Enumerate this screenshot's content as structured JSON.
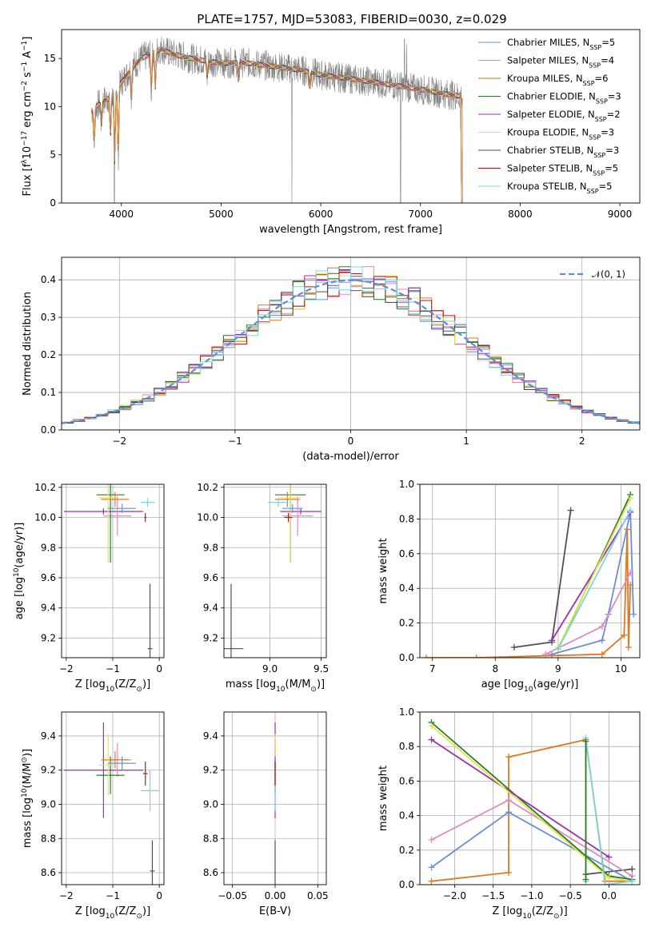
{
  "figure": {
    "title": "PLATE=1757, MJD=53083, FIBERID=0030, z=0.029"
  },
  "palette": {
    "Chabrier MILES": "#6c8ed8",
    "Salpeter MILES": "#e08cc0",
    "Kroupa MILES": "#c47a12",
    "Chabrier ELODIE": "#2a7a2a",
    "Salpeter ELODIE": "#9a2fb0",
    "Kroupa ELODIE": "#e4e44a",
    "Chabrier STELIB": "#505050",
    "Salpeter STELIB": "#b01818",
    "Kroupa STELIB": "#7fd4de",
    "orange": "#e07820",
    "gauss": "#5a8fd8",
    "data": "#808080"
  },
  "chart_data": [
    {
      "id": "spectrum",
      "type": "line",
      "xlabel": "wavelength [Angstrom, rest frame]",
      "ylabel": "Flux [f",
      "ylabel_html": [
        "Flux [f",
        "λ",
        "10",
        "−17",
        " erg cm",
        "−2",
        " s",
        "−1",
        " A",
        "−1",
        "]"
      ],
      "xlim": [
        3400,
        9200
      ],
      "ylim": [
        0,
        18
      ],
      "xticks": [
        4000,
        5000,
        6000,
        7000,
        8000,
        9000
      ],
      "yticks": [
        0,
        5,
        10,
        15
      ],
      "grid": false,
      "legend_position": "top-right",
      "legend": [
        {
          "label": "Chabrier MILES, N",
          "sub": "SSP",
          "tail": "=5",
          "color": "#6c8ed8"
        },
        {
          "label": "Salpeter MILES, N",
          "sub": "SSP",
          "tail": "=4",
          "color": "#e08cc0"
        },
        {
          "label": "Kroupa MILES, N",
          "sub": "SSP",
          "tail": "=6",
          "color": "#c47a12"
        },
        {
          "label": "Chabrier ELODIE, N",
          "sub": "SSP",
          "tail": "=3",
          "color": "#2a7a2a"
        },
        {
          "label": "Salpeter ELODIE, N",
          "sub": "SSP",
          "tail": "=2",
          "color": "#9a2fb0"
        },
        {
          "label": "Kroupa ELODIE, N",
          "sub": "SSP",
          "tail": "=3",
          "color": "#e4e44a"
        },
        {
          "label": "Chabrier STELIB, N",
          "sub": "SSP",
          "tail": "=3",
          "color": "#505050"
        },
        {
          "label": "Salpeter STELIB, N",
          "sub": "SSP",
          "tail": "=5",
          "color": "#b01818"
        },
        {
          "label": "Kroupa STELIB, N",
          "sub": "SSP",
          "tail": "=5",
          "color": "#7fd4de"
        }
      ],
      "continuum": [
        [
          3700,
          9.5
        ],
        [
          3800,
          10.5
        ],
        [
          3900,
          11
        ],
        [
          4000,
          12.5
        ],
        [
          4100,
          14
        ],
        [
          4200,
          15
        ],
        [
          4300,
          15.5
        ],
        [
          4400,
          16
        ],
        [
          4500,
          15.5
        ],
        [
          4700,
          15
        ],
        [
          5000,
          14.5
        ],
        [
          5200,
          14.6
        ],
        [
          5500,
          14.2
        ],
        [
          5800,
          13.8
        ],
        [
          6000,
          13.3
        ],
        [
          6500,
          12.6
        ],
        [
          7000,
          11.8
        ],
        [
          7200,
          11.4
        ],
        [
          7400,
          11.1
        ]
      ],
      "absorption_dips": [
        [
          3727,
          6
        ],
        [
          3800,
          8
        ],
        [
          3890,
          7
        ],
        [
          3933,
          4
        ],
        [
          3968,
          4.5
        ],
        [
          4100,
          11
        ],
        [
          4300,
          11.5
        ],
        [
          4340,
          12
        ],
        [
          4861,
          13
        ],
        [
          5175,
          12.5
        ],
        [
          5890,
          12
        ],
        [
          6563,
          12.5
        ]
      ],
      "spikes": [
        [
          3930,
          0
        ],
        [
          5710,
          0
        ],
        [
          6800,
          0
        ],
        [
          6840,
          17
        ],
        [
          6862,
          16.5
        ],
        [
          7425,
          0
        ]
      ]
    },
    {
      "id": "residuals",
      "type": "histogram",
      "xlabel": "(data-model)/error",
      "ylabel": "Normed distribution",
      "xlim": [
        -2.5,
        2.5
      ],
      "ylim": [
        0,
        0.46
      ],
      "xticks": [
        -2,
        -1,
        0,
        1,
        2
      ],
      "yticks": [
        0.0,
        0.1,
        0.2,
        0.3,
        0.4
      ],
      "grid": true,
      "legend_position": "top-right",
      "legend": [
        {
          "label": "𝒩(0, 1)",
          "color": "#5a8fd8",
          "style": "dashed"
        }
      ],
      "bin_width": 0.1
    },
    {
      "id": "age_vs_Z",
      "type": "errorbar",
      "xlabel": "Z [log",
      "xlabel_html": [
        "Z [log",
        "10",
        "(Z/Z",
        "⊙",
        ")]"
      ],
      "ylabel_html": [
        "age  [log",
        "10",
        "(age/yr)]"
      ],
      "xlim": [
        -2.1,
        0.1
      ],
      "ylim": [
        9.07,
        10.22
      ],
      "xticks": [
        -2,
        -1,
        0
      ],
      "yticks": [
        9.2,
        9.4,
        9.6,
        9.8,
        10.0,
        10.2
      ],
      "grid": true,
      "points": [
        {
          "color": "#9a2fb0",
          "x": -1.2,
          "xerr": 0.85,
          "y": 10.04,
          "yerr": 0.02
        },
        {
          "color": "#e08cc0",
          "x": -0.9,
          "xerr": 0.3,
          "y": 10.01,
          "yerr": 0.13
        },
        {
          "color": "#2a7a2a",
          "x": -1.05,
          "xerr": 0.3,
          "y": 10.15,
          "yerr": 0.45
        },
        {
          "color": "#e07820",
          "x": -0.95,
          "xerr": 0.3,
          "y": 10.12,
          "yerr": 0.05
        },
        {
          "color": "#e4e44a",
          "x": -1.1,
          "xerr": 0.2,
          "y": 10.13,
          "yerr": 0.43
        },
        {
          "color": "#6c8ed8",
          "x": -0.8,
          "xerr": 0.3,
          "y": 10.06,
          "yerr": 0.03
        },
        {
          "color": "#7fd4de",
          "x": -0.25,
          "xerr": 0.15,
          "y": 10.1,
          "yerr": 0.03
        },
        {
          "color": "#505050",
          "x": -0.2,
          "xerr": 0.05,
          "y": 9.13,
          "yerr": 0.43
        },
        {
          "color": "#b01818",
          "x": -0.3,
          "xerr": 0.02,
          "y": 10.0,
          "yerr": 0.03
        }
      ]
    },
    {
      "id": "age_vs_mass",
      "type": "errorbar",
      "xlabel_html": [
        "mass [log",
        "10",
        "(M/M",
        "⊙",
        ")]"
      ],
      "xlim": [
        8.55,
        9.55
      ],
      "ylim": [
        9.07,
        10.22
      ],
      "xticks": [
        9.0,
        9.5
      ],
      "yticks": [
        9.2,
        9.4,
        9.6,
        9.8,
        10.0,
        10.2
      ],
      "grid": true,
      "points": [
        {
          "color": "#9a2fb0",
          "x": 9.3,
          "xerr": 0.2,
          "y": 10.04,
          "yerr": 0.02
        },
        {
          "color": "#e08cc0",
          "x": 9.27,
          "xerr": 0.15,
          "y": 10.01,
          "yerr": 0.13
        },
        {
          "color": "#2a7a2a",
          "x": 9.2,
          "xerr": 0.15,
          "y": 10.15,
          "yerr": 0.45
        },
        {
          "color": "#e07820",
          "x": 9.17,
          "xerr": 0.12,
          "y": 10.12,
          "yerr": 0.05
        },
        {
          "color": "#e4e44a",
          "x": 9.2,
          "xerr": 0.1,
          "y": 10.13,
          "yerr": 0.43
        },
        {
          "color": "#6c8ed8",
          "x": 9.22,
          "xerr": 0.1,
          "y": 10.06,
          "yerr": 0.03
        },
        {
          "color": "#7fd4de",
          "x": 9.08,
          "xerr": 0.1,
          "y": 10.1,
          "yerr": 0.03
        },
        {
          "color": "#505050",
          "x": 8.62,
          "xerr": 0.12,
          "y": 9.13,
          "yerr": 0.43
        },
        {
          "color": "#b01818",
          "x": 9.18,
          "xerr": 0.04,
          "y": 10.0,
          "yerr": 0.03
        }
      ]
    },
    {
      "id": "weight_vs_age",
      "type": "line",
      "xlabel_html": [
        "age  [log",
        "10",
        "(age/yr)]"
      ],
      "ylabel": "mass weight",
      "xlim": [
        6.8,
        10.3
      ],
      "ylim": [
        0,
        1.0
      ],
      "xticks": [
        7,
        8,
        9,
        10
      ],
      "yticks": [
        0.0,
        0.2,
        0.4,
        0.6,
        0.8,
        1.0
      ],
      "grid": true,
      "series": [
        {
          "color": "#505050",
          "x": [
            8.3,
            8.9,
            9.2
          ],
          "y": [
            0.06,
            0.09,
            0.85
          ]
        },
        {
          "color": "#e07820",
          "x": [
            6.9,
            7.7,
            9.7,
            10.05,
            10.1,
            10.12,
            10.15
          ],
          "y": [
            0.0,
            0.0,
            0.02,
            0.13,
            0.74,
            0.06,
            0.42
          ]
        },
        {
          "color": "#6c8ed8",
          "x": [
            8.9,
            9.7,
            9.8,
            10.15,
            10.2
          ],
          "y": [
            0.02,
            0.1,
            0.25,
            0.84,
            0.25
          ]
        },
        {
          "color": "#e08cc0",
          "x": [
            8.8,
            9.7,
            10.15
          ],
          "y": [
            0.02,
            0.18,
            0.49
          ]
        },
        {
          "color": "#2a7a2a",
          "x": [
            9.0,
            10.15
          ],
          "y": [
            0.05,
            0.94
          ]
        },
        {
          "color": "#9a2fb0",
          "x": [
            8.9,
            10.15
          ],
          "y": [
            0.1,
            0.84
          ]
        },
        {
          "color": "#e4e44a",
          "x": [
            9.0,
            10.15
          ],
          "y": [
            0.06,
            0.92
          ]
        },
        {
          "color": "#7fd4de",
          "x": [
            9.0,
            10.15
          ],
          "y": [
            0.05,
            0.85
          ]
        }
      ]
    },
    {
      "id": "mass_vs_Z",
      "type": "errorbar",
      "xlabel_html": [
        "Z [log",
        "10",
        "(Z/Z",
        "⊙",
        ")]"
      ],
      "ylabel_html": [
        "mass [log",
        "10",
        "(M/M",
        "⊙",
        ")]"
      ],
      "xlim": [
        -2.1,
        0.1
      ],
      "ylim": [
        8.53,
        9.54
      ],
      "xticks": [
        -2,
        -1,
        0
      ],
      "yticks": [
        8.6,
        8.8,
        9.0,
        9.2,
        9.4
      ],
      "grid": true,
      "points": [
        {
          "color": "#9a2fb0",
          "x": -1.2,
          "xerr": 0.85,
          "y": 9.2,
          "yerr": 0.28
        },
        {
          "color": "#e08cc0",
          "x": -0.9,
          "xerr": 0.3,
          "y": 9.26,
          "yerr": 0.1
        },
        {
          "color": "#2a7a2a",
          "x": -1.05,
          "xerr": 0.3,
          "y": 9.17,
          "yerr": 0.11
        },
        {
          "color": "#e07820",
          "x": -0.95,
          "xerr": 0.3,
          "y": 9.26,
          "yerr": 0.05
        },
        {
          "color": "#e4e44a",
          "x": -1.1,
          "xerr": 0.2,
          "y": 9.23,
          "yerr": 0.18
        },
        {
          "color": "#6c8ed8",
          "x": -0.8,
          "xerr": 0.3,
          "y": 9.24,
          "yerr": 0.04
        },
        {
          "color": "#7fd4de",
          "x": -0.2,
          "xerr": 0.2,
          "y": 9.08,
          "yerr": 0.12
        },
        {
          "color": "#505050",
          "x": -0.15,
          "xerr": 0.05,
          "y": 8.61,
          "yerr": 0.18
        },
        {
          "color": "#b01818",
          "x": -0.3,
          "xerr": 0.05,
          "y": 9.18,
          "yerr": 0.07
        }
      ]
    },
    {
      "id": "mass_vs_ebv",
      "type": "errorbar",
      "xlabel": "E(B-V)",
      "xlim": [
        -0.06,
        0.06
      ],
      "ylim": [
        8.53,
        9.54
      ],
      "xticks": [
        -0.05,
        0.0,
        0.05
      ],
      "yticks": [
        8.6,
        8.8,
        9.0,
        9.2,
        9.4
      ],
      "grid": true,
      "points": [
        {
          "color": "#9a2fb0",
          "x": 0.0,
          "xerr": 0,
          "y": 9.2,
          "yerr": 0.28
        },
        {
          "color": "#e08cc0",
          "x": 0.0,
          "xerr": 0,
          "y": 9.26,
          "yerr": 0.1
        },
        {
          "color": "#2a7a2a",
          "x": 0.0,
          "xerr": 0,
          "y": 9.17,
          "yerr": 0.11
        },
        {
          "color": "#e07820",
          "x": 0.0,
          "xerr": 0,
          "y": 9.26,
          "yerr": 0.05
        },
        {
          "color": "#e4e44a",
          "x": 0.0,
          "xerr": 0,
          "y": 9.23,
          "yerr": 0.18
        },
        {
          "color": "#6c8ed8",
          "x": 0.0,
          "xerr": 0,
          "y": 9.24,
          "yerr": 0.04
        },
        {
          "color": "#7fd4de",
          "x": 0.0,
          "xerr": 0,
          "y": 9.08,
          "yerr": 0.12
        },
        {
          "color": "#505050",
          "x": 0.0,
          "xerr": 0,
          "y": 8.61,
          "yerr": 0.18
        },
        {
          "color": "#b01818",
          "x": 0.0,
          "xerr": 0,
          "y": 9.18,
          "yerr": 0.07
        }
      ]
    },
    {
      "id": "weight_vs_Z",
      "type": "line",
      "xlabel_html": [
        "Z [log",
        "10",
        "(Z/Z",
        "⊙",
        ")]"
      ],
      "ylabel": "mass weight",
      "xlim": [
        -2.45,
        0.4
      ],
      "ylim": [
        0,
        1.0
      ],
      "xticks": [
        -2.0,
        -1.5,
        -1.0,
        -0.5,
        0.0
      ],
      "xticklabels": [
        "−2.0",
        "−1.5",
        "−1.0",
        "−0.5",
        "0.0"
      ],
      "yticks": [
        0.0,
        0.2,
        0.4,
        0.6,
        0.8,
        1.0
      ],
      "grid": true,
      "series": [
        {
          "color": "#505050",
          "x": [
            -0.3,
            0.3
          ],
          "y": [
            0.06,
            0.09
          ]
        },
        {
          "color": "#e07820",
          "x": [
            -2.3,
            -1.3,
            -1.3,
            -0.3,
            -0.05,
            0.3
          ],
          "y": [
            0.02,
            0.07,
            0.74,
            0.84,
            0.02,
            0.02
          ]
        },
        {
          "color": "#6c8ed8",
          "x": [
            -2.3,
            -1.3,
            0.3
          ],
          "y": [
            0.1,
            0.42,
            0.02
          ]
        },
        {
          "color": "#e08cc0",
          "x": [
            -2.3,
            -1.3,
            0.3
          ],
          "y": [
            0.26,
            0.49,
            0.05
          ]
        },
        {
          "color": "#2a7a2a",
          "x": [
            -2.3,
            0.0,
            0.3
          ],
          "y": [
            0.94,
            0.05,
            0.03
          ]
        },
        {
          "color": "#9a2fb0",
          "x": [
            -2.3,
            0.0
          ],
          "y": [
            0.84,
            0.16
          ]
        },
        {
          "color": "#e4e44a",
          "x": [
            -2.3,
            0.0,
            0.3
          ],
          "y": [
            0.92,
            0.04,
            0.02
          ]
        },
        {
          "color": "#7fd4de",
          "x": [
            -0.3,
            -0.3,
            -0.05,
            0.3
          ],
          "y": [
            0.02,
            0.85,
            0.0,
            0.02
          ]
        },
        {
          "color": "#2a7a2a",
          "x": [
            -0.3,
            -0.3
          ],
          "y": [
            0.03,
            0.83
          ]
        }
      ]
    }
  ]
}
